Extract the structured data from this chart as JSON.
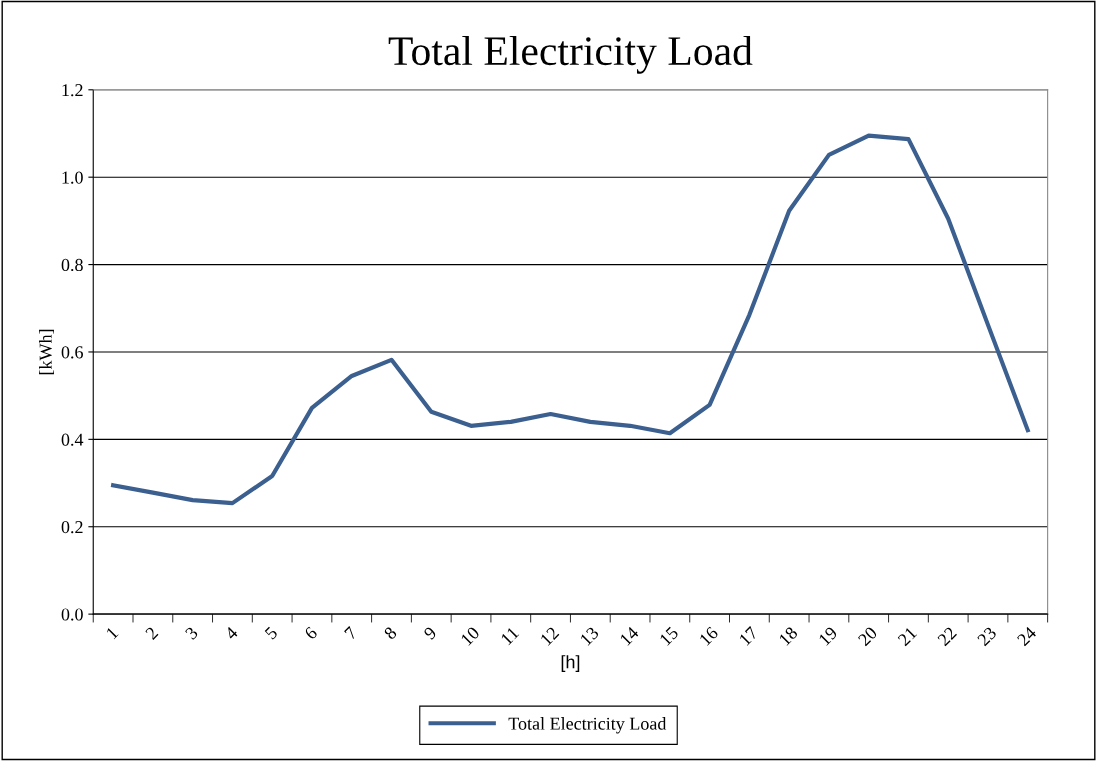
{
  "chart_data": {
    "type": "line",
    "title": "Total Electricity Load",
    "xlabel": "[h]",
    "ylabel": "[kWh]",
    "categories": [
      "1",
      "2",
      "3",
      "4",
      "5",
      "6",
      "7",
      "8",
      "9",
      "10",
      "11",
      "12",
      "13",
      "14",
      "15",
      "16",
      "17",
      "18",
      "19",
      "20",
      "21",
      "22",
      "23",
      "24"
    ],
    "series": [
      {
        "name": "Total Electricity Load",
        "color": "#3b5f8f",
        "values": [
          0.295,
          0.278,
          0.261,
          0.254,
          0.316,
          0.472,
          0.545,
          0.582,
          0.463,
          0.431,
          0.44,
          0.458,
          0.44,
          0.431,
          0.414,
          0.479,
          0.685,
          0.923,
          1.051,
          1.095,
          1.087,
          0.905,
          0.662,
          0.421
        ]
      }
    ],
    "ylim": [
      0,
      1.2
    ],
    "yticks": [
      {
        "value": 0,
        "label": "0.0"
      },
      {
        "value": 0.2,
        "label": "0.2"
      },
      {
        "value": 0.4,
        "label": "0.4"
      },
      {
        "value": 0.6,
        "label": "0.6"
      },
      {
        "value": 0.8,
        "label": "0.8"
      },
      {
        "value": 1.0,
        "label": "1.0"
      },
      {
        "value": 1.2,
        "label": "1.2"
      }
    ],
    "grid": "y",
    "legend": "bottom",
    "marker": "none",
    "line_style": "solid"
  }
}
